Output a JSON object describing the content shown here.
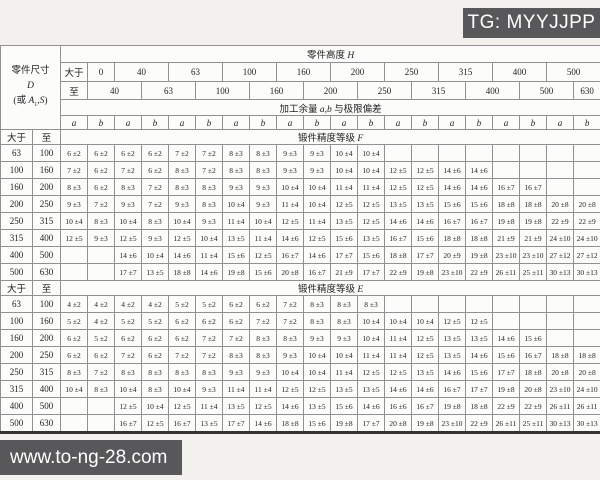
{
  "watermarks": {
    "badge": "TG: MYYJJPP",
    "url": "www.to-ng-28.com"
  },
  "table": {
    "columns": {
      "left_widths": [
        32,
        28
      ],
      "data_col_width": 27,
      "data_col_count": 20
    },
    "part_label": {
      "l1": "零件尺寸",
      "sym": "D",
      "l3_open": "(或 ",
      "l3_a": "A",
      "l3_sub": "1",
      "l3_comma": ",",
      "l3_s": "S",
      "l3_close": ")"
    },
    "header": {
      "height_title": {
        "pre": "零件高度 ",
        "sym": "H"
      },
      "over_label": "大于",
      "to_label": "至",
      "over_row": [
        "0",
        "40",
        "63",
        "100",
        "160",
        "200",
        "250",
        "315",
        "400",
        "500"
      ],
      "to_row": [
        "40",
        "63",
        "100",
        "160",
        "200",
        "250",
        "315",
        "400",
        "500",
        "630"
      ],
      "allowance_title": {
        "pre": "加工余量 ",
        "sym_a": "a",
        "comma": ",",
        "sym_b": "b",
        "post": " 与极限偏差"
      },
      "ab": [
        "a",
        "b"
      ]
    },
    "sections": [
      {
        "grade": {
          "pre": "锻件精度等级 ",
          "sym": "F"
        },
        "rows": [
          {
            "over": "63",
            "to": "100",
            "cells": [
              "6 ±2",
              "6 ±2",
              "6 ±2",
              "6 ±2",
              "7 ±2",
              "7 ±2",
              "8 ±3",
              "8 ±3",
              "9 ±3",
              "9 ±3",
              "10 ±4",
              "10 ±4",
              "",
              "",
              "",
              "",
              "",
              "",
              "",
              ""
            ]
          },
          {
            "over": "100",
            "to": "160",
            "cells": [
              "7 ±2",
              "6 ±2",
              "7 ±2",
              "6 ±2",
              "8 ±3",
              "7 ±2",
              "8 ±3",
              "8 ±3",
              "9 ±3",
              "9 ±3",
              "10 ±4",
              "10 ±4",
              "12 ±5",
              "12 ±5",
              "14 ±6",
              "14 ±6",
              "",
              "",
              "",
              ""
            ]
          },
          {
            "over": "160",
            "to": "200",
            "cells": [
              "8 ±3",
              "6 ±2",
              "8 ±3",
              "7 ±2",
              "8 ±3",
              "8 ±3",
              "9 ±3",
              "9 ±3",
              "10 ±4",
              "10 ±4",
              "11 ±4",
              "11 ±4",
              "12 ±5",
              "12 ±5",
              "14 ±6",
              "14 ±6",
              "16 ±7",
              "16 ±7",
              "",
              ""
            ]
          },
          {
            "over": "200",
            "to": "250",
            "cells": [
              "9 ±3",
              "7 ±2",
              "9 ±3",
              "7 ±2",
              "9 ±3",
              "8 ±3",
              "10 ±4",
              "9 ±3",
              "11 ±4",
              "10 ±4",
              "12 ±5",
              "12 ±5",
              "13 ±5",
              "13 ±5",
              "15 ±6",
              "15 ±6",
              "18 ±8",
              "18 ±8",
              "20 ±8",
              "20 ±8"
            ]
          },
          {
            "over": "250",
            "to": "315",
            "cells": [
              "10 ±4",
              "8 ±3",
              "10 ±4",
              "8 ±3",
              "10 ±4",
              "9 ±3",
              "11 ±4",
              "10 ±4",
              "12 ±5",
              "11 ±4",
              "13 ±5",
              "12 ±5",
              "14 ±6",
              "14 ±6",
              "16 ±7",
              "16 ±7",
              "19 ±8",
              "19 ±8",
              "22 ±9",
              "22 ±9"
            ]
          },
          {
            "over": "315",
            "to": "400",
            "cells": [
              "12 ±5",
              "9 ±3",
              "12 ±5",
              "9 ±3",
              "12 ±5",
              "10 ±4",
              "13 ±5",
              "11 ±4",
              "14 ±6",
              "12 ±5",
              "15 ±6",
              "13 ±5",
              "16 ±7",
              "15 ±6",
              "18 ±8",
              "18 ±8",
              "21 ±9",
              "21 ±9",
              "24 ±10",
              "24 ±10"
            ]
          },
          {
            "over": "400",
            "to": "500",
            "cells": [
              "",
              "",
              "14 ±6",
              "10 ±4",
              "14 ±6",
              "11 ±4",
              "15 ±6",
              "12 ±5",
              "16 ±7",
              "14 ±6",
              "17 ±7",
              "15 ±6",
              "18 ±8",
              "17 ±7",
              "20 ±9",
              "19 ±8",
              "23 ±10",
              "23 ±10",
              "27 ±12",
              "27 ±12"
            ]
          },
          {
            "over": "500",
            "to": "630",
            "cells": [
              "",
              "",
              "17 ±7",
              "13 ±5",
              "18 ±8",
              "14 ±6",
              "19 ±8",
              "15 ±6",
              "20 ±8",
              "16 ±7",
              "21 ±9",
              "17 ±7",
              "22 ±9",
              "19 ±8",
              "23 ±10",
              "22 ±9",
              "26 ±11",
              "25 ±11",
              "30 ±13",
              "30 ±13"
            ]
          }
        ]
      },
      {
        "grade": {
          "pre": "锻件精度等级 ",
          "sym": "E"
        },
        "rows": [
          {
            "over": "63",
            "to": "100",
            "cells": [
              "4 ±2",
              "4 ±2",
              "4 ±2",
              "4 ±2",
              "5 ±2",
              "5 ±2",
              "6 ±2",
              "6 ±2",
              "7 ±2",
              "8 ±3",
              "8 ±3",
              "8 ±3",
              "",
              "",
              "",
              "",
              "",
              "",
              "",
              ""
            ]
          },
          {
            "over": "100",
            "to": "160",
            "cells": [
              "5 ±2",
              "4 ±2",
              "5 ±2",
              "5 ±2",
              "6 ±2",
              "6 ±2",
              "6 ±2",
              "7 ±2",
              "7 ±2",
              "8 ±3",
              "8 ±3",
              "10 ±4",
              "10 ±4",
              "10 ±4",
              "12 ±5",
              "12 ±5",
              "",
              "",
              "",
              ""
            ]
          },
          {
            "over": "160",
            "to": "200",
            "cells": [
              "6 ±2",
              "5 ±2",
              "6 ±2",
              "6 ±2",
              "6 ±2",
              "7 ±2",
              "7 ±2",
              "8 ±3",
              "8 ±3",
              "9 ±3",
              "9 ±3",
              "10 ±4",
              "11 ±4",
              "12 ±5",
              "13 ±5",
              "13 ±5",
              "14 ±6",
              "15 ±6",
              "",
              ""
            ]
          },
          {
            "over": "200",
            "to": "250",
            "cells": [
              "6 ±2",
              "6 ±2",
              "7 ±2",
              "6 ±2",
              "7 ±2",
              "7 ±2",
              "8 ±3",
              "8 ±3",
              "9 ±3",
              "10 ±4",
              "10 ±4",
              "11 ±4",
              "11 ±4",
              "12 ±5",
              "13 ±5",
              "14 ±6",
              "15 ±6",
              "16 ±7",
              "18 ±8",
              "18 ±8"
            ]
          },
          {
            "over": "250",
            "to": "315",
            "cells": [
              "8 ±3",
              "7 ±2",
              "8 ±3",
              "8 ±3",
              "8 ±3",
              "8 ±3",
              "9 ±3",
              "9 ±3",
              "10 ±4",
              "10 ±4",
              "11 ±4",
              "12 ±5",
              "12 ±5",
              "13 ±5",
              "14 ±6",
              "15 ±6",
              "17 ±7",
              "18 ±8",
              "20 ±8",
              "20 ±8"
            ]
          },
          {
            "over": "315",
            "to": "400",
            "cells": [
              "10 ±4",
              "8 ±3",
              "10 ±4",
              "8 ±3",
              "10 ±4",
              "9 ±3",
              "11 ±4",
              "11 ±4",
              "12 ±5",
              "12 ±5",
              "13 ±5",
              "13 ±5",
              "14 ±6",
              "14 ±6",
              "16 ±7",
              "17 ±7",
              "19 ±8",
              "20 ±8",
              "23 ±10",
              "24 ±10"
            ]
          },
          {
            "over": "400",
            "to": "500",
            "cells": [
              "",
              "",
              "12 ±5",
              "10 ±4",
              "12 ±5",
              "11 ±4",
              "13 ±5",
              "12 ±5",
              "14 ±6",
              "13 ±5",
              "15 ±6",
              "14 ±6",
              "16 ±6",
              "16 ±7",
              "19 ±8",
              "18 ±8",
              "22 ±9",
              "22 ±9",
              "26 ±11",
              "26 ±11"
            ]
          },
          {
            "over": "500",
            "to": "630",
            "cells": [
              "",
              "",
              "16 ±7",
              "12 ±5",
              "16 ±7",
              "13 ±5",
              "17 ±7",
              "14 ±6",
              "18 ±8",
              "15 ±6",
              "19 ±8",
              "17 ±7",
              "20 ±8",
              "19 ±8",
              "23 ±10",
              "22 ±9",
              "26 ±11",
              "25 ±11",
              "30 ±13",
              "30 ±13"
            ]
          }
        ]
      }
    ]
  }
}
